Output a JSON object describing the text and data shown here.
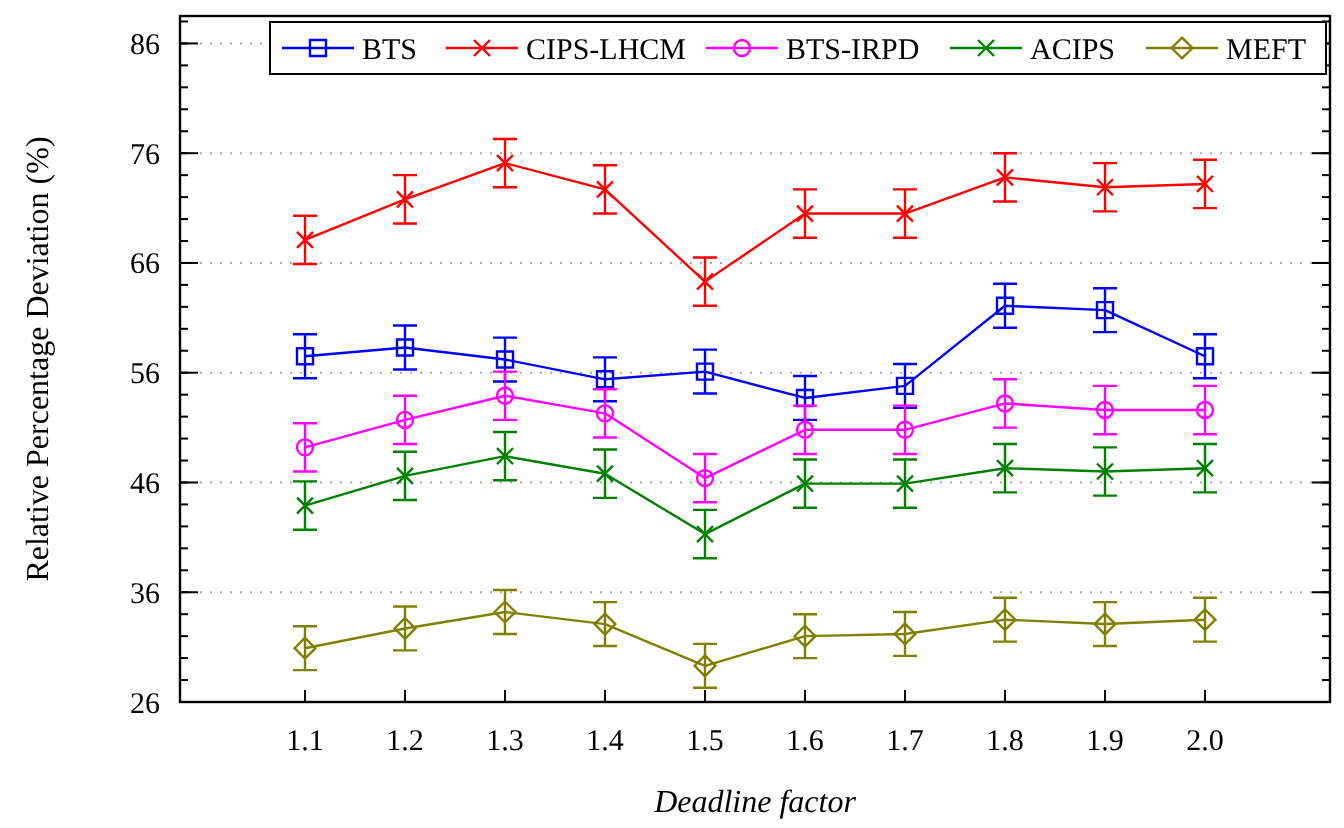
{
  "chart_data": {
    "type": "line",
    "xlabel": "Deadline factor",
    "ylabel": "Relative Percentage Deviation (%)",
    "categories": [
      "1.1",
      "1.2",
      "1.3",
      "1.4",
      "1.5",
      "1.6",
      "1.7",
      "1.8",
      "1.9",
      "2.0"
    ],
    "ylim": [
      26,
      88.5
    ],
    "yticks": [
      26,
      36,
      46,
      56,
      66,
      76,
      86
    ],
    "grid": "y",
    "legend": "top",
    "series": [
      {
        "name": "BTS",
        "color": "#0000ff",
        "marker": "square",
        "values": [
          57.5,
          58.3,
          57.2,
          55.4,
          56.1,
          53.7,
          54.8,
          62.1,
          61.7,
          57.5
        ],
        "errors": [
          2,
          2,
          2,
          2,
          2,
          2,
          2,
          2,
          2,
          2
        ]
      },
      {
        "name": "CIPS-LHCM",
        "color": "#ff0000",
        "marker": "cross",
        "values": [
          68.1,
          71.8,
          75.1,
          72.7,
          64.3,
          70.5,
          70.5,
          73.8,
          72.9,
          73.2
        ],
        "errors": [
          2.2,
          2.2,
          2.2,
          2.2,
          2.2,
          2.2,
          2.2,
          2.2,
          2.2,
          2.2
        ]
      },
      {
        "name": "BTS-IRPD",
        "color": "#ff00ff",
        "marker": "circle",
        "values": [
          49.2,
          51.7,
          53.9,
          52.3,
          46.4,
          50.8,
          50.8,
          53.2,
          52.6,
          52.6
        ],
        "errors": [
          2.2,
          2.2,
          2.2,
          2.2,
          2.2,
          2.2,
          2.2,
          2.2,
          2.2,
          2.2
        ]
      },
      {
        "name": "ACIPS",
        "color": "#008000",
        "marker": "cross",
        "values": [
          43.9,
          46.6,
          48.4,
          46.8,
          41.3,
          45.9,
          45.9,
          47.3,
          47.0,
          47.3
        ],
        "errors": [
          2.2,
          2.2,
          2.2,
          2.2,
          2.2,
          2.2,
          2.2,
          2.2,
          2.2,
          2.2
        ]
      },
      {
        "name": "MEFT",
        "color": "#808000",
        "marker": "diamond",
        "values": [
          30.9,
          32.7,
          34.2,
          33.1,
          29.3,
          32.0,
          32.2,
          33.5,
          33.1,
          33.5
        ],
        "errors": [
          2,
          2,
          2,
          2,
          2,
          2,
          2,
          2,
          2,
          2
        ]
      }
    ]
  }
}
